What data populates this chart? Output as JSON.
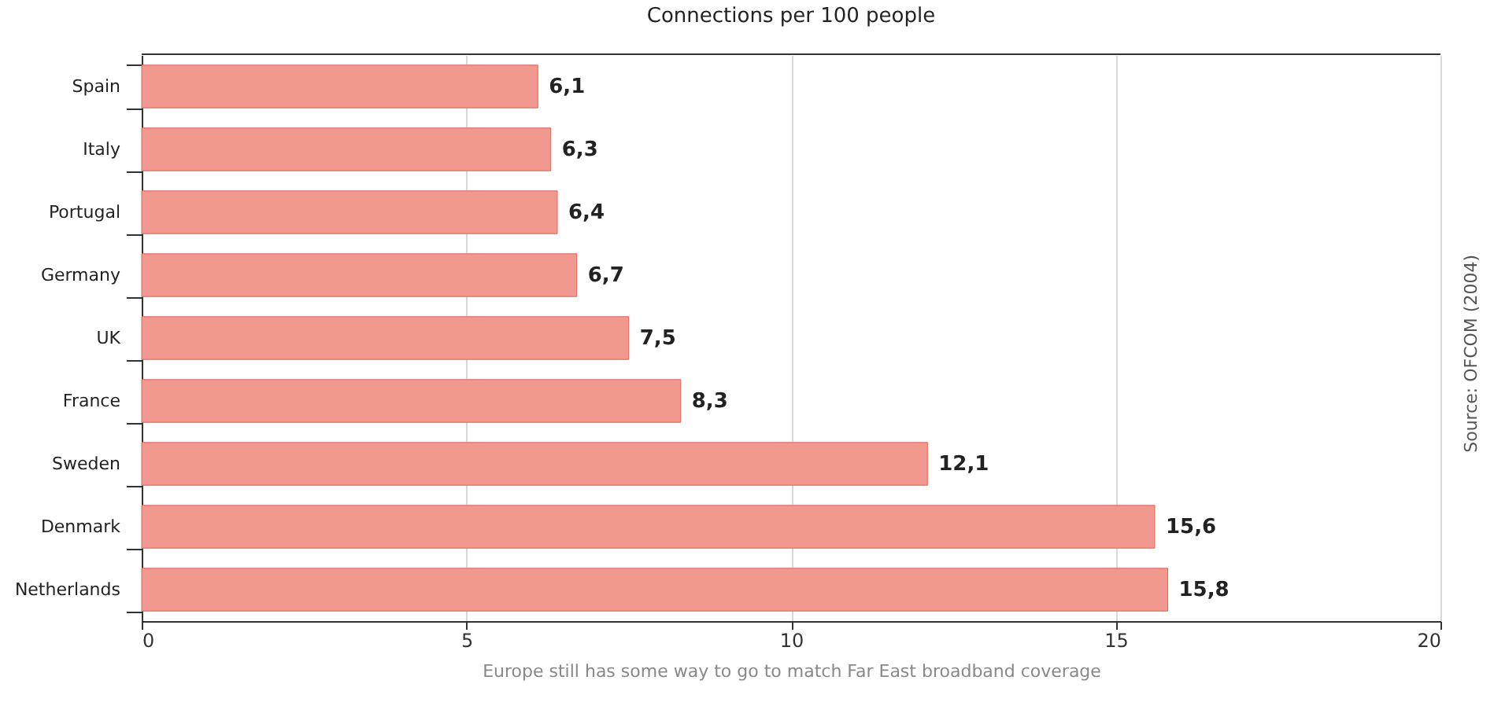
{
  "chart_data": {
    "type": "bar",
    "orientation": "horizontal",
    "title": "Connections per 100 people",
    "xlabel": "Europe still has some way to go to match Far East broadband coverage",
    "categories": [
      "Spain",
      "Italy",
      "Portugal",
      "Germany",
      "UK",
      "France",
      "Sweden",
      "Denmark",
      "Netherlands"
    ],
    "values": [
      6.1,
      6.3,
      6.4,
      6.7,
      7.5,
      8.3,
      12.1,
      15.6,
      15.8
    ],
    "value_labels": [
      "6,1",
      "6,3",
      "6,4",
      "6,7",
      "7,5",
      "8,3",
      "12,1",
      "15,6",
      "15,8"
    ],
    "color": "#f2998f",
    "xlim": [
      0,
      20
    ],
    "xticks": [
      0,
      5,
      10,
      15,
      20
    ],
    "grid": "x",
    "annotations": [
      "Source: OFCOM (2004)"
    ]
  }
}
